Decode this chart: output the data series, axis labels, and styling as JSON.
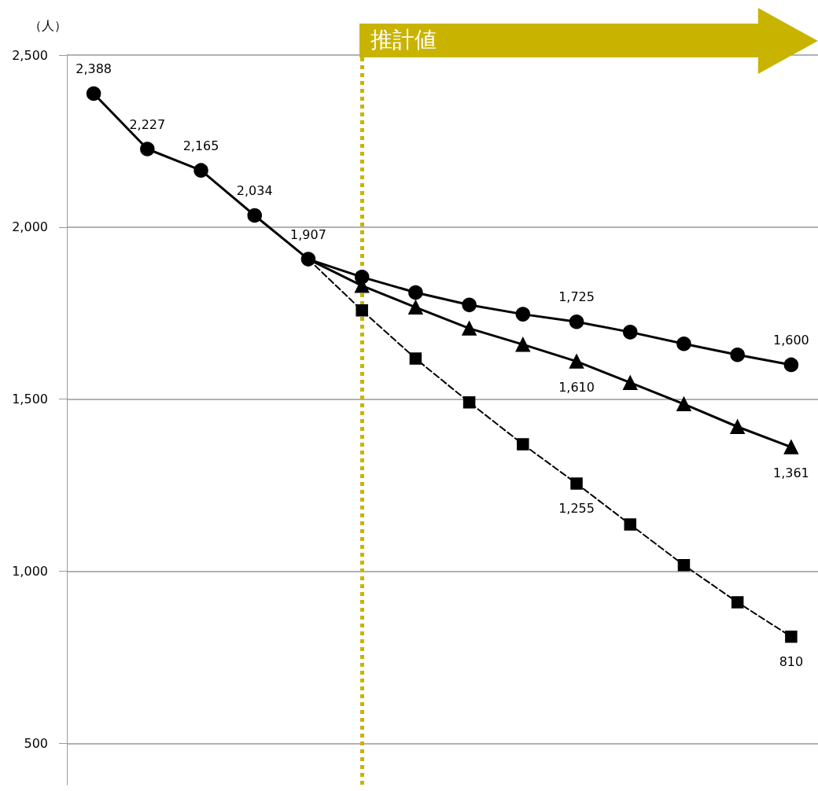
{
  "chart_data": {
    "type": "line",
    "ylabel": "（人）",
    "categories": [
      null,
      null,
      null,
      null,
      null,
      null,
      null,
      null,
      null,
      null,
      null,
      null,
      null,
      null
    ],
    "series": [
      {
        "color": "#000000",
        "marker": "circle",
        "line_style": "solid",
        "values": [
          2388,
          2227,
          2165,
          2034,
          1907,
          null,
          null,
          null,
          null,
          null,
          null,
          null,
          null,
          null
        ],
        "value_labels": [
          "2,388",
          "2,227",
          "2,165",
          "2,034",
          "1,907",
          null,
          null,
          null,
          null,
          null,
          null,
          null,
          null,
          null
        ]
      },
      {
        "color": "#000000",
        "marker": "circle",
        "line_style": "solid",
        "values": [
          null,
          null,
          null,
          null,
          1907,
          1855,
          1810,
          1774,
          1747,
          1725,
          1695,
          1661,
          1629,
          1600
        ],
        "value_labels": [
          null,
          null,
          null,
          null,
          null,
          null,
          null,
          null,
          null,
          "1,725",
          null,
          null,
          null,
          "1,600"
        ]
      },
      {
        "color": "#000000",
        "marker": "triangle",
        "line_style": "solid",
        "values": [
          null,
          null,
          null,
          null,
          1907,
          1830,
          1767,
          1706,
          1659,
          1610,
          1548,
          1486,
          1420,
          1361
        ],
        "value_labels": [
          null,
          null,
          null,
          null,
          null,
          null,
          null,
          null,
          null,
          "1,610",
          null,
          null,
          null,
          "1,361"
        ]
      },
      {
        "color": "#000000",
        "marker": "square",
        "line_style": "dashed",
        "values": [
          null,
          null,
          null,
          null,
          1907,
          1758,
          1618,
          1491,
          1369,
          1255,
          1136,
          1018,
          910,
          810
        ],
        "value_labels": [
          null,
          null,
          null,
          null,
          null,
          null,
          null,
          null,
          null,
          "1,255",
          null,
          null,
          null,
          "810"
        ]
      }
    ],
    "ylim": [
      380,
      2500
    ],
    "yticks": [
      {
        "value": 500,
        "label": "500"
      },
      {
        "value": 1000,
        "label": "1,000"
      },
      {
        "value": 1500,
        "label": "1,500"
      },
      {
        "value": 2000,
        "label": "2,000"
      },
      {
        "value": 2500,
        "label": "2,500"
      }
    ],
    "grid": "y",
    "annotations": [
      "推計値"
    ]
  }
}
